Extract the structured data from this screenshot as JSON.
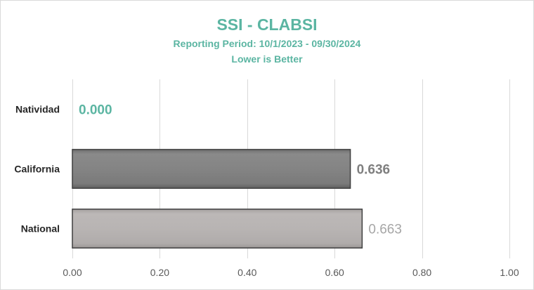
{
  "chart_data": {
    "type": "bar",
    "orientation": "horizontal",
    "title": "SSI - CLABSI",
    "subtitle": "Reporting Period: 10/1/2023 - 09/30/2024",
    "subtitle2": "Lower is Better",
    "categories": [
      "Natividad",
      "California",
      "National"
    ],
    "values": [
      0.0,
      0.636,
      0.663
    ],
    "value_labels": [
      "0.000",
      "0.636",
      "0.663"
    ],
    "xlim": [
      0,
      1
    ],
    "xticks": [
      0,
      0.2,
      0.4,
      0.6,
      0.8,
      1.0
    ],
    "xtick_labels": [
      "0.00",
      "0.20",
      "0.40",
      "0.60",
      "0.80",
      "1.00"
    ],
    "grid": true,
    "legend": "none",
    "colors": {
      "title": "#5bb5a2",
      "bars": [
        "#5bb5a2",
        "#808080",
        "#b8b4b2"
      ],
      "value_labels": [
        "#5bb5a2",
        "#7f7f7f",
        "#a6a6a6"
      ],
      "bar_border": "#3f3f3f",
      "grid": "#d9d9d9",
      "axis_text": "#595959",
      "category_text": "#262626"
    }
  }
}
